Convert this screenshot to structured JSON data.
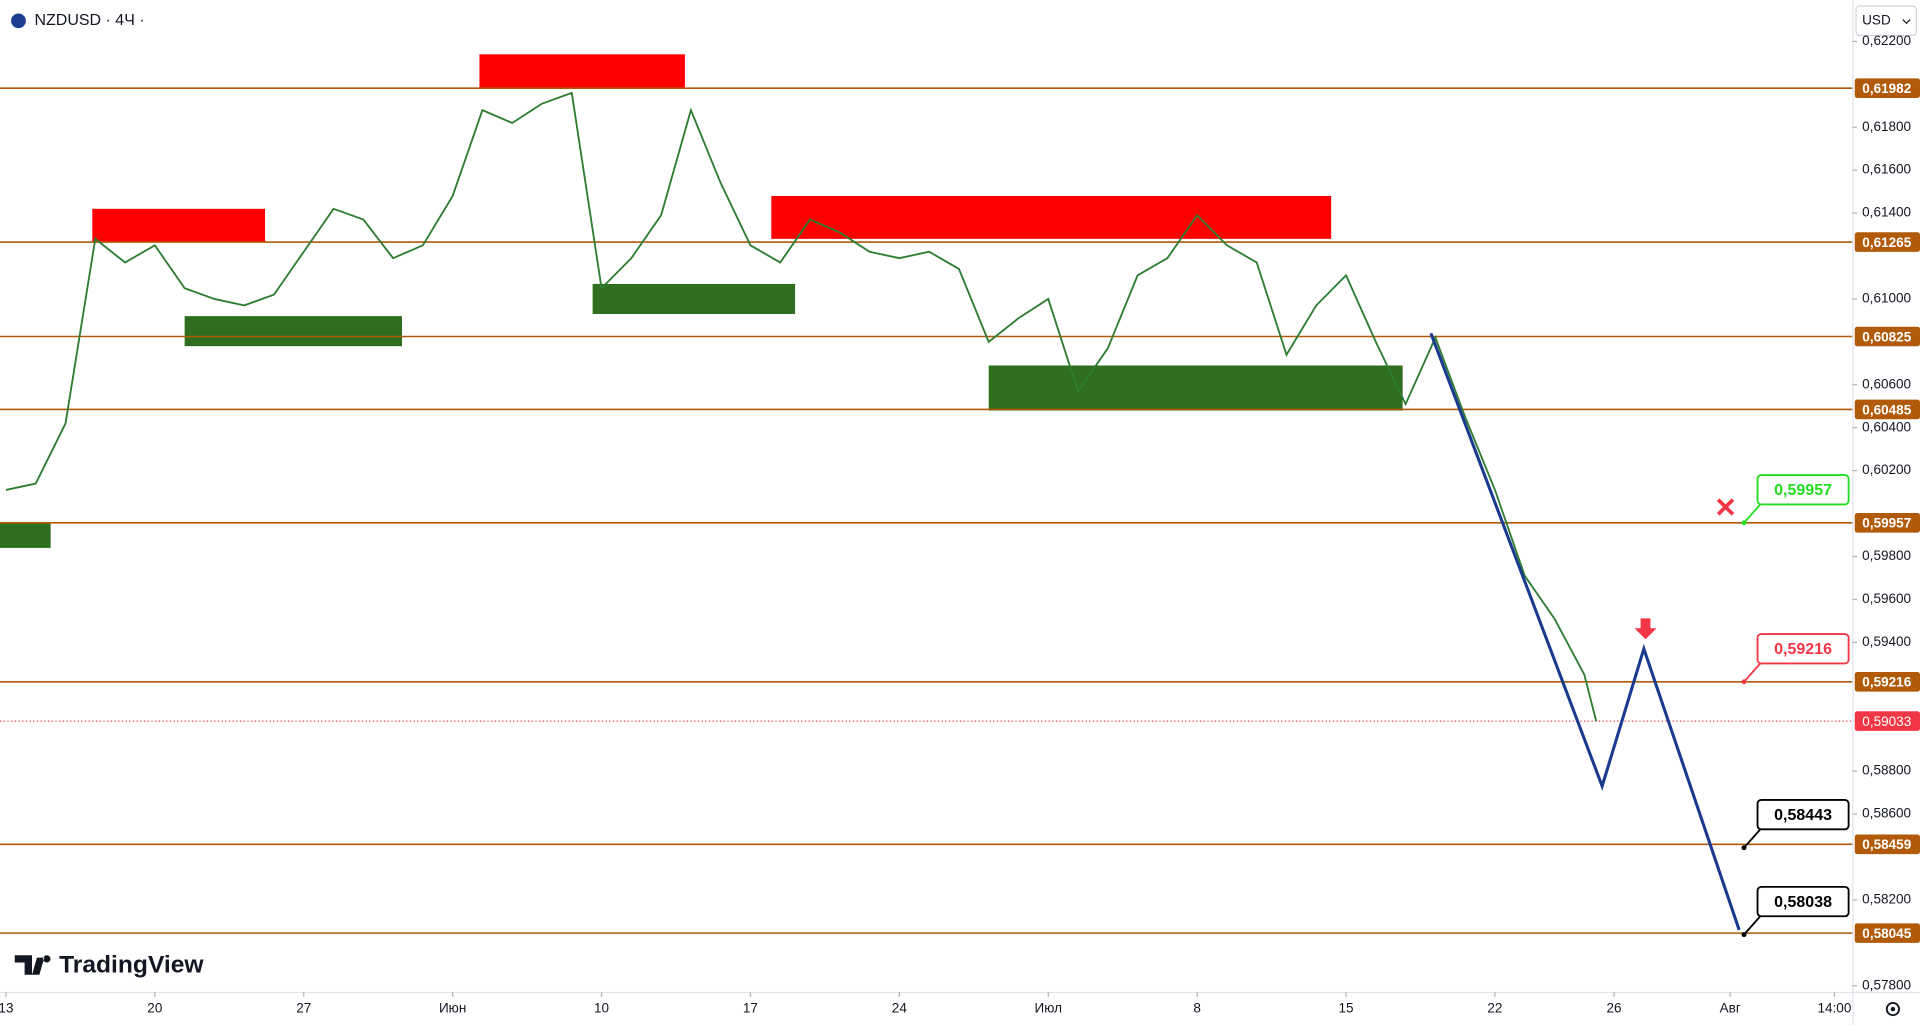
{
  "chart_data": {
    "type": "line",
    "title": "NZDUSD · 4Ч ·",
    "currency": "USD",
    "brand": "TradingView",
    "color": "#2e7d32",
    "x": [
      0,
      1,
      2,
      3,
      4,
      5,
      6,
      7,
      8,
      9,
      10,
      11,
      12,
      13,
      14,
      15,
      16,
      17,
      18,
      19,
      20,
      21,
      22,
      23,
      24,
      25,
      26,
      27,
      28,
      29,
      30,
      31,
      32,
      33,
      34,
      35,
      36,
      37,
      38,
      39,
      40,
      41,
      42,
      43,
      44,
      45,
      46,
      47,
      48,
      49,
      50,
      51,
      52,
      53,
      53.4
    ],
    "values": [
      0.6011,
      0.6014,
      0.6042,
      0.6128,
      0.6117,
      0.6125,
      0.6105,
      0.61,
      0.6097,
      0.6102,
      0.6122,
      0.6142,
      0.6137,
      0.6119,
      0.6125,
      0.6148,
      0.6188,
      0.6182,
      0.6191,
      0.6196,
      0.6105,
      0.6119,
      0.6139,
      0.6188,
      0.6154,
      0.6125,
      0.6117,
      0.6137,
      0.6131,
      0.6122,
      0.6119,
      0.6122,
      0.6114,
      0.608,
      0.6091,
      0.61,
      0.6057,
      0.6077,
      0.6111,
      0.6119,
      0.6139,
      0.6125,
      0.6117,
      0.6074,
      0.6097,
      0.6111,
      0.608,
      0.6051,
      0.6082,
      0.6045,
      0.6011,
      0.5971,
      0.5951,
      0.5925,
      0.59033
    ],
    "xlim": [
      -0.2,
      62
    ],
    "ylim": [
      0.57771,
      0.62393
    ],
    "xticks": [
      {
        "value": 0,
        "label": "13"
      },
      {
        "value": 5,
        "label": "20"
      },
      {
        "value": 10,
        "label": "27"
      },
      {
        "value": 15,
        "label": "Июн"
      },
      {
        "value": 20,
        "label": "10"
      },
      {
        "value": 25,
        "label": "17"
      },
      {
        "value": 30,
        "label": "24"
      },
      {
        "value": 35,
        "label": "Июл"
      },
      {
        "value": 40,
        "label": "8"
      },
      {
        "value": 45,
        "label": "15"
      },
      {
        "value": 50,
        "label": "22"
      },
      {
        "value": 54,
        "label": "26"
      },
      {
        "value": 57.9,
        "label": "Авг"
      },
      {
        "value": 61.4,
        "label": "14:00"
      }
    ],
    "yticks": [
      {
        "value": 0.622,
        "label": "0,62200"
      },
      {
        "value": 0.618,
        "label": "0,61800"
      },
      {
        "value": 0.616,
        "label": "0,61600"
      },
      {
        "value": 0.614,
        "label": "0,61400"
      },
      {
        "value": 0.61,
        "label": "0,61000"
      },
      {
        "value": 0.606,
        "label": "0,60600"
      },
      {
        "value": 0.604,
        "label": "0,60400"
      },
      {
        "value": 0.602,
        "label": "0,60200"
      },
      {
        "value": 0.598,
        "label": "0,59800"
      },
      {
        "value": 0.596,
        "label": "0,59600"
      },
      {
        "value": 0.594,
        "label": "0,59400"
      },
      {
        "value": 0.588,
        "label": "0,58800"
      },
      {
        "value": 0.586,
        "label": "0,58600"
      },
      {
        "value": 0.582,
        "label": "0,58200"
      },
      {
        "value": 0.578,
        "label": "0,57800"
      }
    ],
    "levels": [
      {
        "value": 0.61982,
        "label": "0,61982"
      },
      {
        "value": 0.61265,
        "label": "0,61265"
      },
      {
        "value": 0.60825,
        "label": "0,60825"
      },
      {
        "value": 0.60485,
        "label": "0,60485"
      },
      {
        "value": 0.59957,
        "label": "0,59957"
      },
      {
        "value": 0.59216,
        "label": "0,59216"
      },
      {
        "value": 0.58459,
        "label": "0,58459"
      },
      {
        "value": 0.58045,
        "label": "0,58045"
      }
    ],
    "level_color": "#b05a0a",
    "zones": [
      {
        "from": 2.9,
        "to": 8.7,
        "high": 0.6142,
        "low": 0.61265,
        "color": "#ff0000"
      },
      {
        "from": 15.9,
        "to": 22.8,
        "high": 0.6214,
        "low": 0.6198,
        "color": "#ff0000"
      },
      {
        "from": 25.7,
        "to": 44.5,
        "high": 0.6148,
        "low": 0.6128,
        "color": "#ff0000"
      },
      {
        "from": -0.2,
        "to": 1.5,
        "high": 0.5996,
        "low": 0.5984,
        "color": "#2f6d1f"
      },
      {
        "from": 6,
        "to": 13.3,
        "high": 0.6092,
        "low": 0.6078,
        "color": "#2f6d1f"
      },
      {
        "from": 19.7,
        "to": 26.5,
        "high": 0.6107,
        "low": 0.6093,
        "color": "#2f6d1f"
      },
      {
        "from": 33,
        "to": 46.9,
        "high": 0.6069,
        "low": 0.6048,
        "color": "#2f6d1f"
      }
    ],
    "projection": {
      "x": [
        47.85,
        53.6,
        55.0,
        58.2
      ],
      "values": [
        0.6084,
        0.5873,
        0.5937,
        0.5806
      ],
      "color": "#1a3a8f"
    },
    "last_price": {
      "value": 0.59033,
      "label": "0,59033",
      "color": "#f23645"
    },
    "callouts": [
      {
        "value": 0.59957,
        "label": "0,59957",
        "color": "#22dd22"
      },
      {
        "value": 0.59216,
        "label": "0,59216",
        "color": "#f23645"
      },
      {
        "value": 0.58443,
        "label": "0,58443",
        "color": "#000000"
      },
      {
        "value": 0.58038,
        "label": "0,58038",
        "color": "#000000"
      }
    ]
  }
}
